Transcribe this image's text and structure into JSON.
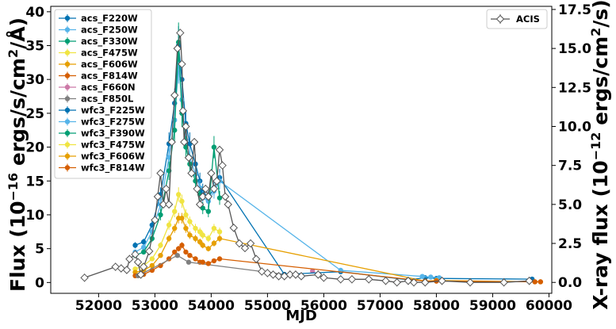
{
  "chart_data": {
    "type": "scatter",
    "xlabel": "MJD",
    "ylabel_left": "Flux (10^-16 ergs/s/cm^2/Å)",
    "ylabel_left_parts": [
      "Flux (10",
      "−16",
      " ergs/s/cm",
      "2",
      "/Å)"
    ],
    "ylabel_right": "X-ray flux (10^-12 ergs/cm^2/s)",
    "ylabel_right_parts": [
      "X-ray flux (10",
      "−12",
      " ergs/cm",
      "2",
      "/s)"
    ],
    "xlim": [
      51150,
      60050
    ],
    "ylim_left": [
      -1.6,
      40.8
    ],
    "ylim_right": [
      -0.7,
      17.7
    ],
    "x_ticks": [
      52000,
      53000,
      54000,
      55000,
      56000,
      57000,
      58000,
      59000,
      60000
    ],
    "x_tick_labels": [
      "52000",
      "53000",
      "54000",
      "55000",
      "56000",
      "57000",
      "58000",
      "59000",
      "60000"
    ],
    "y_left_ticks": [
      0,
      5,
      10,
      15,
      20,
      25,
      30,
      35,
      40
    ],
    "y_left_tick_labels": [
      "0",
      "5",
      "10",
      "15",
      "20",
      "25",
      "30",
      "35",
      "40"
    ],
    "y_right_ticks": [
      0.0,
      2.5,
      5.0,
      7.5,
      10.0,
      12.5,
      15.0,
      17.5
    ],
    "y_right_tick_labels": [
      "0.0",
      "2.5",
      "5.0",
      "7.5",
      "10.0",
      "12.5",
      "15.0",
      "17.5"
    ],
    "legend_left_position": "top-left",
    "legend_right_position": "top-right",
    "grid": false,
    "series": [
      {
        "name": "acs_F220W",
        "color": "#0072b2",
        "marker": "o",
        "axis": "left",
        "x": [
          52650,
          52800,
          52950,
          53100,
          53250,
          53350,
          53420,
          53480,
          53550,
          53620,
          53720,
          53800
        ],
        "y": [
          5.5,
          6.0,
          8.5,
          13.0,
          20.5,
          26.5,
          35.0,
          30.0,
          23.5,
          20.5,
          17.5,
          15.0
        ]
      },
      {
        "name": "acs_F250W",
        "color": "#56b4e9",
        "marker": "o",
        "axis": "left",
        "x": [
          52650,
          52800,
          52950,
          53100,
          53250,
          53350,
          53420,
          53480,
          53550,
          53620,
          53720,
          53800
        ],
        "y": [
          4.5,
          5.2,
          7.5,
          11.5,
          18.5,
          24.0,
          32.0,
          27.0,
          21.0,
          18.5,
          16.0,
          14.0
        ]
      },
      {
        "name": "acs_F330W",
        "color": "#009e73",
        "marker": "o",
        "axis": "left",
        "x": [
          52650,
          52800,
          52950,
          53100,
          53250,
          53350,
          53420,
          53480,
          53550,
          53620,
          53720,
          53800
        ],
        "y": [
          4.0,
          4.5,
          6.5,
          10.0,
          16.5,
          22.5,
          35.5,
          25.0,
          20.0,
          17.5,
          15.0,
          13.0
        ]
      },
      {
        "name": "acs_F475W",
        "color": "#f0e442",
        "marker": "o",
        "axis": "left",
        "x": [
          52650,
          52800,
          52950,
          53100,
          53250,
          53350,
          53420,
          53480,
          53550,
          53620,
          53720,
          53800
        ],
        "y": [
          2.0,
          2.5,
          3.5,
          5.5,
          8.5,
          10.5,
          13.0,
          12.0,
          10.0,
          9.0,
          8.0,
          7.5
        ]
      },
      {
        "name": "acs_F606W",
        "color": "#e69f00",
        "marker": "o",
        "axis": "left",
        "x": [
          52650,
          52800,
          52950,
          53100,
          53250,
          53350,
          53420,
          53480,
          53550,
          53620,
          53720,
          53800
        ],
        "y": [
          1.5,
          1.8,
          2.5,
          4.0,
          6.5,
          8.0,
          9.5,
          9.5,
          8.0,
          7.0,
          6.5,
          6.0
        ]
      },
      {
        "name": "acs_F814W",
        "color": "#d55e00",
        "marker": "o",
        "axis": "left",
        "x": [
          52650,
          52800,
          52950,
          53100,
          53250,
          53350,
          53420,
          53480,
          53550,
          53620,
          53720,
          53800
        ],
        "y": [
          1.0,
          1.2,
          1.8,
          2.5,
          3.5,
          4.5,
          5.0,
          5.5,
          4.5,
          4.0,
          3.5,
          3.0
        ]
      },
      {
        "name": "acs_F660N",
        "color": "#cc79a7",
        "marker": "o",
        "axis": "left",
        "x": [
          55800
        ],
        "y": [
          1.7
        ]
      },
      {
        "name": "acs_F850L",
        "color": "#7f7f7f",
        "marker": "o",
        "axis": "left",
        "x": [
          52700,
          53400,
          53600,
          55300
        ],
        "y": [
          1.0,
          4.0,
          3.0,
          1.2
        ]
      },
      {
        "name": "wfc3_F225W",
        "color": "#0072b2",
        "marker": "o",
        "axis": "left",
        "x": [
          53850,
          53950,
          54050,
          54150,
          55300,
          56300,
          57500,
          57800,
          58000,
          59700
        ],
        "y": [
          13.5,
          12.5,
          14.0,
          15.5,
          1.2,
          1.6,
          0.4,
          0.7,
          0.6,
          0.5
        ]
      },
      {
        "name": "wfc3_F275W",
        "color": "#56b4e9",
        "marker": "o",
        "axis": "left",
        "x": [
          53850,
          53950,
          54050,
          54150,
          56300,
          57750,
          57900,
          58050
        ],
        "y": [
          12.5,
          12.0,
          13.5,
          15.0,
          1.8,
          0.9,
          0.8,
          0.7
        ]
      },
      {
        "name": "wfc3_F390W",
        "color": "#009e73",
        "marker": "o",
        "axis": "left",
        "x": [
          53850,
          53950,
          54050,
          54150
        ],
        "y": [
          11.0,
          10.5,
          20.0,
          12.5
        ]
      },
      {
        "name": "wfc3_F475W",
        "color": "#f0e442",
        "marker": "o",
        "axis": "left",
        "x": [
          53850,
          53950,
          54050,
          54150
        ],
        "y": [
          7.0,
          6.5,
          8.0,
          7.5
        ]
      },
      {
        "name": "wfc3_F606W",
        "color": "#e69f00",
        "marker": "o",
        "axis": "left",
        "x": [
          53850,
          53950,
          54050,
          54150,
          57800,
          58000,
          59750,
          59850
        ],
        "y": [
          5.5,
          5.0,
          5.8,
          6.5,
          0.2,
          0.3,
          0.1,
          0.1
        ]
      },
      {
        "name": "wfc3_F814W",
        "color": "#d55e00",
        "marker": "o",
        "axis": "left",
        "x": [
          53850,
          53950,
          54050,
          54150,
          57800,
          58000,
          59750,
          59850
        ],
        "y": [
          3.0,
          2.8,
          3.2,
          3.5,
          0.2,
          0.2,
          0.1,
          0.1
        ]
      },
      {
        "name": "ACIS",
        "color": "#555555",
        "marker": "D-open",
        "axis": "right",
        "x": [
          51750,
          52300,
          52400,
          52500,
          52550,
          52650,
          52700,
          52750,
          52800,
          52900,
          53000,
          53050,
          53100,
          53150,
          53200,
          53250,
          53300,
          53350,
          53400,
          53450,
          53480,
          53500,
          53520,
          53550,
          53600,
          53650,
          53700,
          53750,
          53800,
          53850,
          53900,
          53950,
          54000,
          54050,
          54100,
          54150,
          54200,
          54250,
          54300,
          54400,
          54500,
          54600,
          54700,
          54800,
          54900,
          55000,
          55100,
          55200,
          55300,
          55400,
          55500,
          55600,
          55900,
          56000,
          56300,
          56500,
          56800,
          57100,
          57300,
          57500,
          57600,
          57800,
          58100,
          58600,
          59200,
          59650
        ],
        "y": [
          0.3,
          1.0,
          0.9,
          0.8,
          1.5,
          1.8,
          1.3,
          0.5,
          1.0,
          2.0,
          4.0,
          5.5,
          7.0,
          5.0,
          6.0,
          5.0,
          9.0,
          12.0,
          15.0,
          16.0,
          14.0,
          11.0,
          9.0,
          10.0,
          8.0,
          7.0,
          9.0,
          6.0,
          5.0,
          5.5,
          6.0,
          5.5,
          7.0,
          6.0,
          6.5,
          8.5,
          7.5,
          5.5,
          5.0,
          3.5,
          2.5,
          2.2,
          2.5,
          1.5,
          0.7,
          0.6,
          0.5,
          0.4,
          0.4,
          0.5,
          0.5,
          0.4,
          0.5,
          0.3,
          0.2,
          0.2,
          0.2,
          0.1,
          0.0,
          0.1,
          0.0,
          0.0,
          0.1,
          0.0,
          0.0,
          0.1
        ]
      }
    ]
  }
}
